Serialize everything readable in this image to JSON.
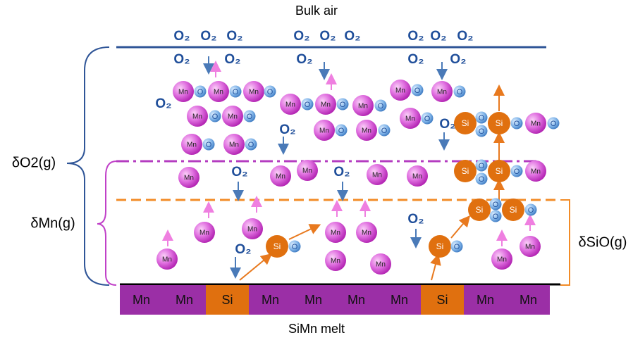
{
  "header": {
    "title": "Bulk air"
  },
  "footer": {
    "title": "SiMn melt"
  },
  "zones": [
    "δO2(g)",
    "δMn(g)",
    "δSiO(g)"
  ],
  "melt": [
    "Mn",
    "Mn",
    "Si",
    "Mn",
    "Mn",
    "Mn",
    "Mn",
    "Si",
    "Mn",
    "Mn"
  ],
  "oxygen": [
    "O₂",
    "O₂",
    "O₂",
    "O₂",
    "O₂",
    "O₂",
    "O₂",
    "O₂",
    "O₂",
    "O₂",
    "O₂",
    "O₂",
    "O₂",
    "O₂",
    "O₂",
    "O₂",
    "O₂",
    "O₂",
    "O₂",
    "O₂",
    "O₂"
  ],
  "atoms": [
    "Mn",
    "O",
    "Mn",
    "O",
    "Mn",
    "O",
    "Mn",
    "O",
    "Mn",
    "O",
    "Mn",
    "O",
    "Mn",
    "O",
    "Mn",
    "O",
    "Mn",
    "O",
    "Mn",
    "O",
    "Mn",
    "O",
    "Mn",
    "O",
    "Mn",
    "O",
    "Mn",
    "O",
    "Mn",
    "O",
    "Si",
    "O",
    "O",
    "Si",
    "O",
    "Mn",
    "O",
    "Mn",
    "Mn",
    "Mn",
    "Mn",
    "Mn",
    "Si",
    "O",
    "O",
    "Si",
    "O",
    "Mn",
    "Si",
    "O",
    "O",
    "Si",
    "O",
    "Mn",
    "Mn",
    "Mn",
    "Mn",
    "Mn",
    "Si",
    "O",
    "Mn",
    "Mn",
    "Si",
    "O",
    "Mn",
    "Mn"
  ]
}
